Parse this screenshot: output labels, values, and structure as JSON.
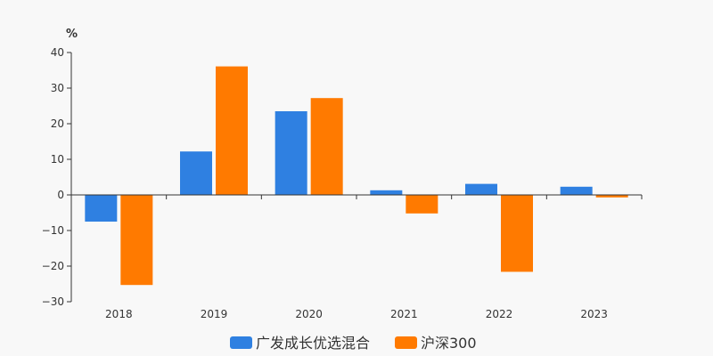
{
  "chart_data": {
    "type": "bar",
    "unit_label": "%",
    "categories": [
      "2018",
      "2019",
      "2020",
      "2021",
      "2022",
      "2023"
    ],
    "series": [
      {
        "name": "广发成长优选混合",
        "color": "#2f80e1",
        "values": [
          -7.5,
          12.2,
          23.5,
          1.3,
          3.1,
          2.3
        ]
      },
      {
        "name": "沪深300",
        "color": "#ff7a00",
        "values": [
          -25.3,
          36.1,
          27.2,
          -5.2,
          -21.6,
          -0.7
        ]
      }
    ],
    "yticks": [
      40,
      30,
      20,
      10,
      0,
      -10,
      -20,
      -30
    ],
    "ylim": [
      -30,
      40
    ],
    "grid": false,
    "legend_position": "bottom-center"
  }
}
